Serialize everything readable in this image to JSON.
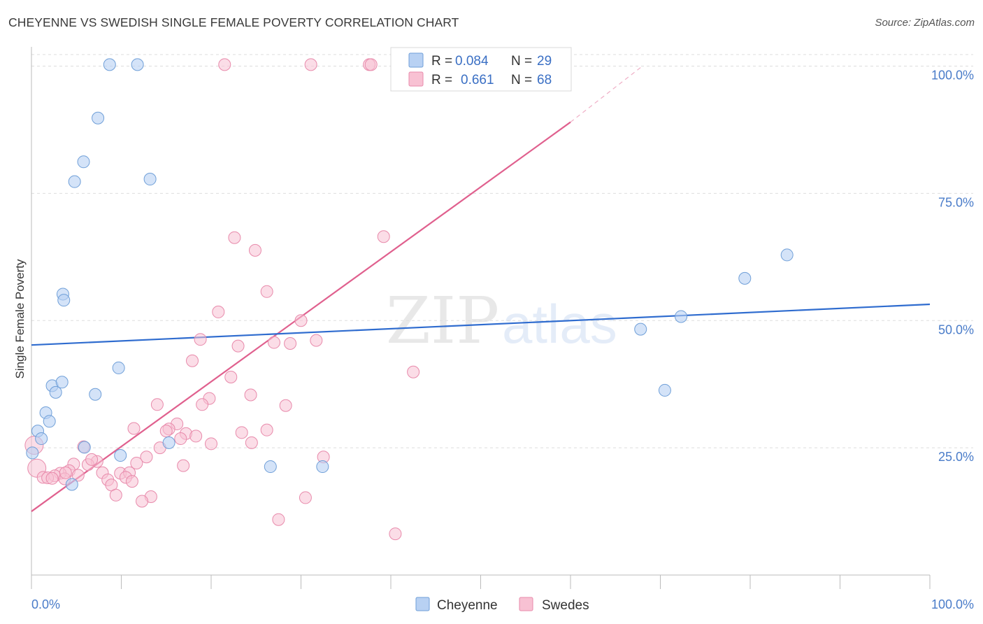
{
  "title": "CHEYENNE VS SWEDISH SINGLE FEMALE POVERTY CORRELATION CHART",
  "source": "Source: ZipAtlas.com",
  "watermark": {
    "zip": "ZIP",
    "atlas": "atlas"
  },
  "colors": {
    "cheyenne_fill": "#b8d1f3",
    "cheyenne_stroke": "#6f9fd8",
    "cheyenne_line": "#2f6ccf",
    "swedes_fill": "#f8c1d3",
    "swedes_stroke": "#e88aab",
    "swedes_line": "#e0608e",
    "axis_label": "#4a7cc9",
    "grid": "#dddddd"
  },
  "legend": {
    "rows": [
      {
        "r_label": "R =",
        "r_value": "0.084",
        "n_label": "N =",
        "n_value": "29"
      },
      {
        "r_label": "R =",
        "r_value": "0.661",
        "n_label": "N =",
        "n_value": "68"
      }
    ]
  },
  "chart_data": {
    "type": "scatter",
    "title": "CHEYENNE VS SWEDISH SINGLE FEMALE POVERTY CORRELATION CHART",
    "xlabel": "",
    "ylabel": "Single Female Poverty",
    "xlim": [
      0,
      100
    ],
    "ylim": [
      0,
      103
    ],
    "x_tick_labels": [
      "0.0%",
      "100.0%"
    ],
    "y_ticks": [
      25,
      50,
      75,
      100
    ],
    "y_tick_labels": [
      "25.0%",
      "50.0%",
      "75.0%",
      "100.0%"
    ],
    "grid": true,
    "legend_entries": [
      "Cheyenne",
      "Swedes"
    ],
    "series": [
      {
        "name": "Cheyenne",
        "r": 0.084,
        "n": 29,
        "trend": {
          "x": [
            0,
            100
          ],
          "y": [
            45.2,
            53.2
          ]
        },
        "points": [
          {
            "x": 8.7,
            "y": 100.3
          },
          {
            "x": 11.8,
            "y": 100.3
          },
          {
            "x": 7.4,
            "y": 89.8
          },
          {
            "x": 5.8,
            "y": 81.2
          },
          {
            "x": 4.8,
            "y": 77.3
          },
          {
            "x": 13.2,
            "y": 77.8
          },
          {
            "x": 3.5,
            "y": 55.2
          },
          {
            "x": 3.6,
            "y": 54.0
          },
          {
            "x": 9.7,
            "y": 40.7
          },
          {
            "x": 2.3,
            "y": 37.2
          },
          {
            "x": 3.4,
            "y": 37.9
          },
          {
            "x": 2.7,
            "y": 35.9
          },
          {
            "x": 7.1,
            "y": 35.5
          },
          {
            "x": 1.6,
            "y": 31.9
          },
          {
            "x": 2.0,
            "y": 30.2
          },
          {
            "x": 0.7,
            "y": 28.3
          },
          {
            "x": 1.1,
            "y": 26.8
          },
          {
            "x": 5.9,
            "y": 25.1
          },
          {
            "x": 15.3,
            "y": 26.0
          },
          {
            "x": 0.1,
            "y": 24.0
          },
          {
            "x": 9.9,
            "y": 23.5
          },
          {
            "x": 26.6,
            "y": 21.3
          },
          {
            "x": 32.4,
            "y": 21.3
          },
          {
            "x": 4.5,
            "y": 17.8
          },
          {
            "x": 67.8,
            "y": 48.3
          },
          {
            "x": 72.3,
            "y": 50.8
          },
          {
            "x": 79.4,
            "y": 58.3
          },
          {
            "x": 84.1,
            "y": 62.9
          },
          {
            "x": 70.5,
            "y": 36.3
          }
        ]
      },
      {
        "name": "Swedes",
        "r": 0.661,
        "n": 68,
        "trend": {
          "x": [
            0,
            60
          ],
          "y": [
            12.5,
            89.0
          ]
        },
        "trend_extension": {
          "x": [
            60,
            68
          ],
          "y": [
            89.0,
            100.0
          ]
        },
        "points": [
          {
            "x": 21.5,
            "y": 100.3
          },
          {
            "x": 31.1,
            "y": 100.3
          },
          {
            "x": 37.6,
            "y": 100.3
          },
          {
            "x": 37.8,
            "y": 100.3
          },
          {
            "x": 22.6,
            "y": 66.3
          },
          {
            "x": 39.2,
            "y": 66.5
          },
          {
            "x": 24.9,
            "y": 63.8
          },
          {
            "x": 26.2,
            "y": 55.7
          },
          {
            "x": 20.8,
            "y": 51.7
          },
          {
            "x": 30.0,
            "y": 50.0
          },
          {
            "x": 18.8,
            "y": 46.3
          },
          {
            "x": 23.0,
            "y": 45.0
          },
          {
            "x": 27.0,
            "y": 45.7
          },
          {
            "x": 28.8,
            "y": 45.5
          },
          {
            "x": 31.7,
            "y": 46.1
          },
          {
            "x": 17.9,
            "y": 42.1
          },
          {
            "x": 22.2,
            "y": 38.9
          },
          {
            "x": 42.5,
            "y": 39.9
          },
          {
            "x": 24.4,
            "y": 35.4
          },
          {
            "x": 19.8,
            "y": 34.7
          },
          {
            "x": 19.0,
            "y": 33.5
          },
          {
            "x": 14.0,
            "y": 33.5
          },
          {
            "x": 28.3,
            "y": 33.3
          },
          {
            "x": 16.2,
            "y": 29.7
          },
          {
            "x": 11.4,
            "y": 28.8
          },
          {
            "x": 15.3,
            "y": 28.7
          },
          {
            "x": 15.0,
            "y": 28.3
          },
          {
            "x": 23.4,
            "y": 28.0
          },
          {
            "x": 26.2,
            "y": 28.5
          },
          {
            "x": 17.2,
            "y": 27.8
          },
          {
            "x": 18.3,
            "y": 27.3
          },
          {
            "x": 16.6,
            "y": 26.8
          },
          {
            "x": 20.0,
            "y": 25.8
          },
          {
            "x": 24.5,
            "y": 26.0
          },
          {
            "x": 14.3,
            "y": 25.0
          },
          {
            "x": 5.8,
            "y": 25.2
          },
          {
            "x": 0.3,
            "y": 25.5
          },
          {
            "x": 12.8,
            "y": 23.2
          },
          {
            "x": 32.5,
            "y": 23.2
          },
          {
            "x": 7.3,
            "y": 22.3
          },
          {
            "x": 11.7,
            "y": 22.0
          },
          {
            "x": 4.7,
            "y": 21.8
          },
          {
            "x": 6.3,
            "y": 21.7
          },
          {
            "x": 0.6,
            "y": 21.0
          },
          {
            "x": 4.2,
            "y": 20.5
          },
          {
            "x": 3.2,
            "y": 20.0
          },
          {
            "x": 7.9,
            "y": 20.1
          },
          {
            "x": 9.9,
            "y": 20.0
          },
          {
            "x": 10.9,
            "y": 20.1
          },
          {
            "x": 2.6,
            "y": 19.5
          },
          {
            "x": 1.3,
            "y": 19.2
          },
          {
            "x": 1.8,
            "y": 19.1
          },
          {
            "x": 2.3,
            "y": 19.0
          },
          {
            "x": 3.7,
            "y": 18.9
          },
          {
            "x": 8.5,
            "y": 18.7
          },
          {
            "x": 10.5,
            "y": 19.2
          },
          {
            "x": 8.9,
            "y": 17.7
          },
          {
            "x": 9.4,
            "y": 15.7
          },
          {
            "x": 13.3,
            "y": 15.4
          },
          {
            "x": 30.5,
            "y": 15.2
          },
          {
            "x": 12.3,
            "y": 14.5
          },
          {
            "x": 27.5,
            "y": 10.9
          },
          {
            "x": 40.5,
            "y": 8.1
          },
          {
            "x": 3.8,
            "y": 20.1
          },
          {
            "x": 6.7,
            "y": 22.7
          },
          {
            "x": 11.2,
            "y": 18.4
          },
          {
            "x": 16.9,
            "y": 21.5
          },
          {
            "x": 5.2,
            "y": 19.6
          }
        ]
      }
    ]
  }
}
